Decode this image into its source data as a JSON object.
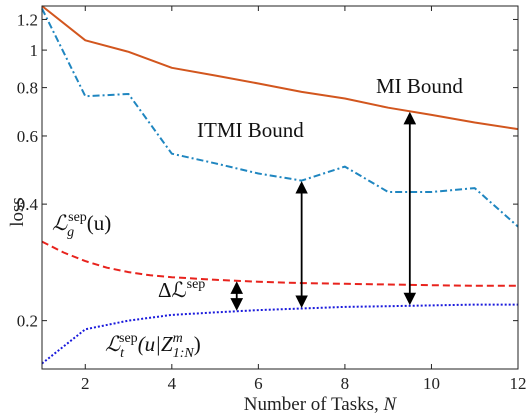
{
  "chart_data": {
    "type": "line",
    "xlabel": "Number of Tasks, ",
    "xlabel_var": "N",
    "ylabel": "loss",
    "xlim": [
      1,
      12
    ],
    "ylim": [
      0.15,
      1.3
    ],
    "yscale": "log",
    "x_ticks": [
      2,
      4,
      6,
      8,
      10,
      12
    ],
    "y_ticks": [
      0.2,
      0.4,
      0.6,
      0.8,
      1,
      1.2
    ],
    "y_tick_labels": [
      "0.2",
      "0.4",
      "0.6",
      "0.8",
      "1",
      "1.2"
    ],
    "grid": false,
    "series": [
      {
        "key": "mi",
        "color": "#d2561e",
        "dash": "",
        "x": [
          1,
          2,
          3,
          4,
          5,
          6,
          7,
          8,
          9,
          10,
          11,
          12
        ],
        "values": [
          1.3,
          1.06,
          0.99,
          0.9,
          0.86,
          0.82,
          0.78,
          0.75,
          0.71,
          0.68,
          0.65,
          0.625
        ]
      },
      {
        "key": "itmi",
        "color": "#1f86c0",
        "dash": "7 3 2 3",
        "x": [
          1,
          2,
          3,
          4,
          5,
          6,
          7,
          8,
          9,
          10,
          11,
          12
        ],
        "values": [
          1.28,
          0.76,
          0.77,
          0.54,
          0.51,
          0.48,
          0.46,
          0.5,
          0.43,
          0.43,
          0.44,
          0.35
        ]
      },
      {
        "key": "g",
        "color": "#e8231d",
        "dash": "7 4",
        "x": [
          1,
          1.5,
          2,
          2.5,
          3,
          3.5,
          4,
          5,
          6,
          7,
          8,
          9,
          10,
          11,
          12
        ],
        "values": [
          0.32,
          0.3,
          0.285,
          0.274,
          0.267,
          0.262,
          0.259,
          0.255,
          0.252,
          0.25,
          0.249,
          0.248,
          0.247,
          0.246,
          0.246
        ]
      },
      {
        "key": "t",
        "color": "#1a1adc",
        "dash": "2 2",
        "x": [
          1,
          2,
          3,
          4,
          5,
          6,
          7,
          8,
          9,
          10,
          11,
          12
        ],
        "values": [
          0.155,
          0.19,
          0.2,
          0.207,
          0.21,
          0.213,
          0.215,
          0.217,
          0.218,
          0.219,
          0.22,
          0.22
        ]
      }
    ],
    "annotations": {
      "mi_label": "MI Bound",
      "itmi_label": "ITMI Bound",
      "g_label": {
        "base": "ℒ",
        "sub": "g",
        "sup": "sep",
        "arg": "(u)"
      },
      "delta_label": {
        "prefix": "Δℒ",
        "sup": "sep"
      },
      "t_label": {
        "base": "ℒ",
        "sub": "t",
        "sup": "sep",
        "arg_open": "(u|Z",
        "arg_sup": "m",
        "arg_sub": "1:N",
        "arg_close": ")"
      }
    },
    "arrows": [
      {
        "x": 5.5,
        "from_series": "t",
        "to_series": "g"
      },
      {
        "x": 7,
        "from_series": "t",
        "to_series": "itmi"
      },
      {
        "x": 9.5,
        "from_series": "t",
        "to_series": "mi"
      }
    ]
  }
}
